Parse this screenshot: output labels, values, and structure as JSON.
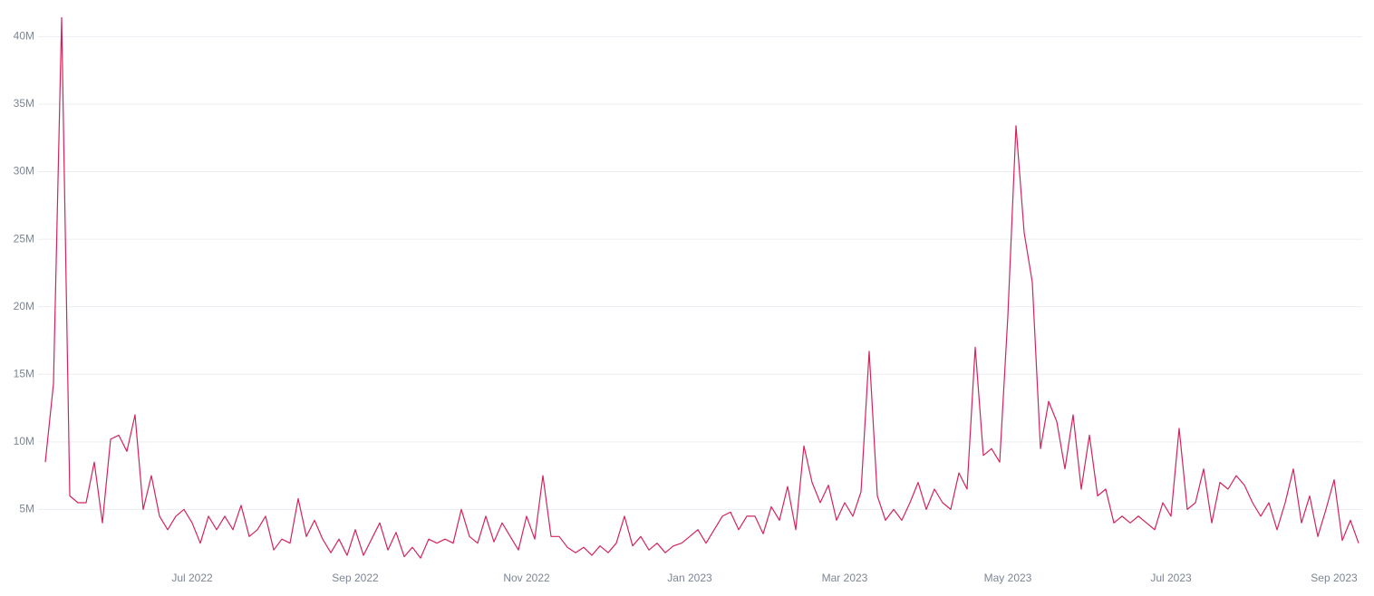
{
  "chart_data": {
    "type": "line",
    "categories": [
      null,
      null,
      null,
      null,
      null,
      null,
      null,
      null,
      null,
      null,
      null,
      null,
      null,
      null,
      null,
      null,
      null,
      null,
      "Jul 2022",
      null,
      null,
      null,
      null,
      null,
      null,
      null,
      null,
      null,
      null,
      null,
      null,
      null,
      null,
      null,
      null,
      null,
      null,
      null,
      "Sep 2022",
      null,
      null,
      null,
      null,
      null,
      null,
      null,
      null,
      null,
      null,
      null,
      null,
      null,
      null,
      null,
      null,
      null,
      null,
      null,
      null,
      "Nov 2022",
      null,
      null,
      null,
      null,
      null,
      null,
      null,
      null,
      null,
      null,
      null,
      null,
      null,
      null,
      null,
      null,
      null,
      null,
      null,
      "Jan 2023",
      null,
      null,
      null,
      null,
      null,
      null,
      null,
      null,
      null,
      null,
      null,
      null,
      null,
      null,
      null,
      null,
      null,
      null,
      "Mar 2023",
      null,
      null,
      null,
      null,
      null,
      null,
      null,
      null,
      null,
      null,
      null,
      null,
      null,
      null,
      null,
      null,
      null,
      null,
      null,
      "May 2023",
      null,
      null,
      null,
      null,
      null,
      null,
      null,
      null,
      null,
      null,
      null,
      null,
      null,
      null,
      null,
      null,
      null,
      null,
      null,
      "Jul 2023",
      null,
      null,
      null,
      null,
      null,
      null,
      null,
      null,
      null,
      null,
      null,
      null,
      null,
      null,
      null,
      null,
      null,
      null,
      null,
      "Sep 2023",
      null,
      null,
      null
    ],
    "values": [
      8.5,
      14.3,
      41.4,
      6,
      5.5,
      5.5,
      8.5,
      4,
      10.2,
      10.5,
      9.3,
      12,
      5,
      7.5,
      4.5,
      3.5,
      4.5,
      5,
      4,
      2.5,
      4.5,
      3.5,
      4.5,
      3.5,
      5.3,
      3,
      3.5,
      4.5,
      2,
      2.8,
      2.5,
      5.8,
      3,
      4.2,
      2.8,
      1.8,
      2.8,
      1.6,
      3.5,
      1.6,
      2.8,
      4,
      2,
      3.3,
      1.5,
      2.2,
      1.4,
      2.8,
      2.5,
      2.8,
      2.5,
      5,
      3,
      2.5,
      4.5,
      2.6,
      4,
      3,
      2,
      4.5,
      2.8,
      7.5,
      3,
      3,
      2.2,
      1.8,
      2.2,
      1.6,
      2.3,
      1.8,
      2.5,
      4.5,
      2.3,
      3,
      2,
      2.5,
      1.8,
      2.3,
      2.5,
      3,
      3.5,
      2.5,
      3.5,
      4.5,
      4.8,
      3.5,
      4.5,
      4.5,
      3.2,
      5.2,
      4.2,
      6.7,
      3.5,
      9.7,
      7,
      5.5,
      6.8,
      4.2,
      5.5,
      4.5,
      6.3,
      16.7,
      6,
      4.2,
      5,
      4.2,
      5.5,
      7,
      5,
      6.5,
      5.5,
      5,
      7.7,
      6.5,
      17,
      9,
      9.5,
      8.5,
      19.3,
      33.4,
      25.5,
      21.8,
      9.5,
      13,
      11.5,
      8,
      12,
      6.5,
      10.5,
      6,
      6.5,
      4,
      4.5,
      4,
      4.5,
      4,
      3.5,
      5.5,
      4.5,
      11,
      5,
      5.5,
      8,
      4,
      7,
      6.5,
      7.5,
      6.8,
      5.5,
      4.5,
      5.5,
      3.5,
      5.5,
      8,
      4,
      6,
      3,
      5,
      7.2,
      2.7,
      4.2,
      2.5
    ],
    "color": "#d3245a",
    "ylim": [
      0,
      41.5
    ],
    "yticks": [
      {
        "value": 5,
        "label": "5M"
      },
      {
        "value": 10,
        "label": "10M"
      },
      {
        "value": 15,
        "label": "15M"
      },
      {
        "value": 20,
        "label": "20M"
      },
      {
        "value": 25,
        "label": "25M"
      },
      {
        "value": 30,
        "label": "30M"
      },
      {
        "value": 35,
        "label": "35M"
      },
      {
        "value": 40,
        "label": "40M"
      }
    ],
    "grid": true
  }
}
